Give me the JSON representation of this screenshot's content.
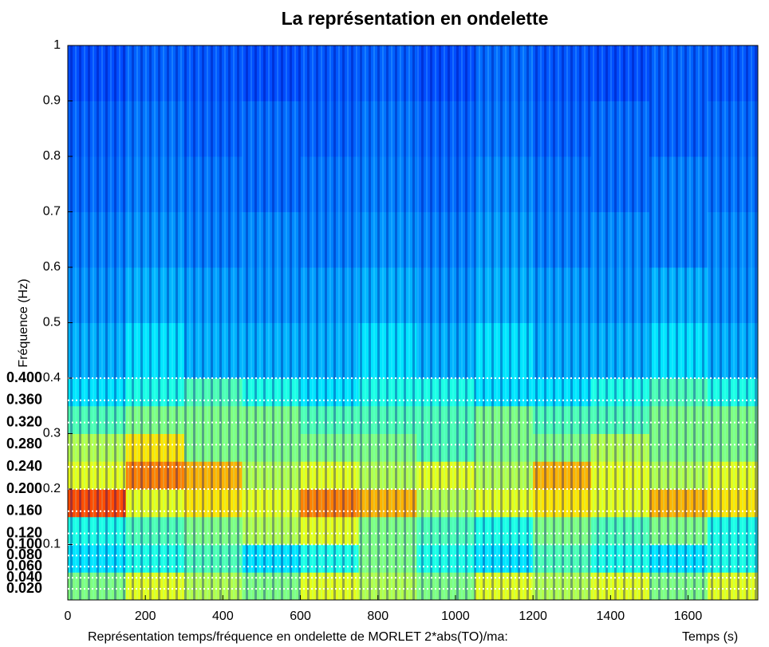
{
  "chart_data": {
    "type": "heatmap",
    "title": "La représentation en ondelette",
    "xlabel": "Représentation temps/fréquence en ondelette de MORLET 2*abs(TO)/ma:",
    "xunit_label": "Temps (s)",
    "ylabel": "Fréquence (Hz)",
    "colormap": "jet",
    "xlim": [
      0,
      1780
    ],
    "ylim": [
      0,
      1
    ],
    "xticks": [
      0,
      200,
      400,
      600,
      800,
      1000,
      1200,
      1400,
      1600
    ],
    "yticks": [
      0.1,
      0.2,
      0.3,
      0.4,
      0.5,
      0.6,
      0.7,
      0.8,
      0.9,
      1
    ],
    "ref_lines": [
      {
        "value": 0.4,
        "label": "0.400"
      },
      {
        "value": 0.36,
        "label": "0.360"
      },
      {
        "value": 0.32,
        "label": "0.320"
      },
      {
        "value": 0.28,
        "label": "0.280"
      },
      {
        "value": 0.24,
        "label": "0.240"
      },
      {
        "value": 0.2,
        "label": "0.200"
      },
      {
        "value": 0.16,
        "label": "0.160"
      },
      {
        "value": 0.12,
        "label": "0.120"
      },
      {
        "value": 0.1,
        "label": "0.100"
      },
      {
        "value": 0.08,
        "label": "0.080"
      },
      {
        "value": 0.06,
        "label": "0.060"
      },
      {
        "value": 0.04,
        "label": "0.040"
      },
      {
        "value": 0.02,
        "label": "0.020"
      }
    ],
    "x_bins": [
      0,
      150,
      300,
      450,
      600,
      750,
      900,
      1050,
      1200,
      1350,
      1500,
      1650,
      1780
    ],
    "y_bins": [
      0,
      0.05,
      0.1,
      0.15,
      0.2,
      0.25,
      0.3,
      0.35,
      0.4,
      0.5,
      0.6,
      0.7,
      0.8,
      0.9,
      1
    ],
    "z": [
      [
        0.5,
        0.6,
        0.55,
        0.5,
        0.6,
        0.55,
        0.5,
        0.6,
        0.55,
        0.6,
        0.5,
        0.6
      ],
      [
        0.35,
        0.4,
        0.45,
        0.35,
        0.4,
        0.5,
        0.4,
        0.35,
        0.45,
        0.4,
        0.35,
        0.4
      ],
      [
        0.4,
        0.45,
        0.5,
        0.55,
        0.6,
        0.5,
        0.45,
        0.4,
        0.5,
        0.45,
        0.5,
        0.4
      ],
      [
        0.8,
        0.6,
        0.65,
        0.6,
        0.75,
        0.7,
        0.55,
        0.6,
        0.65,
        0.6,
        0.7,
        0.65
      ],
      [
        0.6,
        0.75,
        0.7,
        0.55,
        0.6,
        0.55,
        0.6,
        0.55,
        0.7,
        0.6,
        0.55,
        0.6
      ],
      [
        0.55,
        0.65,
        0.5,
        0.5,
        0.5,
        0.5,
        0.45,
        0.5,
        0.5,
        0.55,
        0.5,
        0.5
      ],
      [
        0.45,
        0.5,
        0.5,
        0.5,
        0.45,
        0.45,
        0.45,
        0.5,
        0.45,
        0.45,
        0.5,
        0.5
      ],
      [
        0.35,
        0.4,
        0.45,
        0.4,
        0.35,
        0.4,
        0.4,
        0.35,
        0.35,
        0.4,
        0.45,
        0.4
      ],
      [
        0.3,
        0.35,
        0.3,
        0.3,
        0.3,
        0.35,
        0.3,
        0.35,
        0.3,
        0.3,
        0.35,
        0.3
      ],
      [
        0.27,
        0.3,
        0.28,
        0.27,
        0.28,
        0.3,
        0.27,
        0.3,
        0.28,
        0.27,
        0.3,
        0.27
      ],
      [
        0.25,
        0.27,
        0.25,
        0.26,
        0.25,
        0.27,
        0.25,
        0.28,
        0.25,
        0.26,
        0.25,
        0.26
      ],
      [
        0.23,
        0.25,
        0.24,
        0.23,
        0.24,
        0.25,
        0.23,
        0.26,
        0.24,
        0.23,
        0.25,
        0.24
      ],
      [
        0.22,
        0.24,
        0.22,
        0.23,
        0.22,
        0.24,
        0.22,
        0.24,
        0.22,
        0.23,
        0.22,
        0.23
      ],
      [
        0.2,
        0.22,
        0.21,
        0.2,
        0.21,
        0.22,
        0.2,
        0.23,
        0.21,
        0.2,
        0.22,
        0.21
      ]
    ]
  }
}
